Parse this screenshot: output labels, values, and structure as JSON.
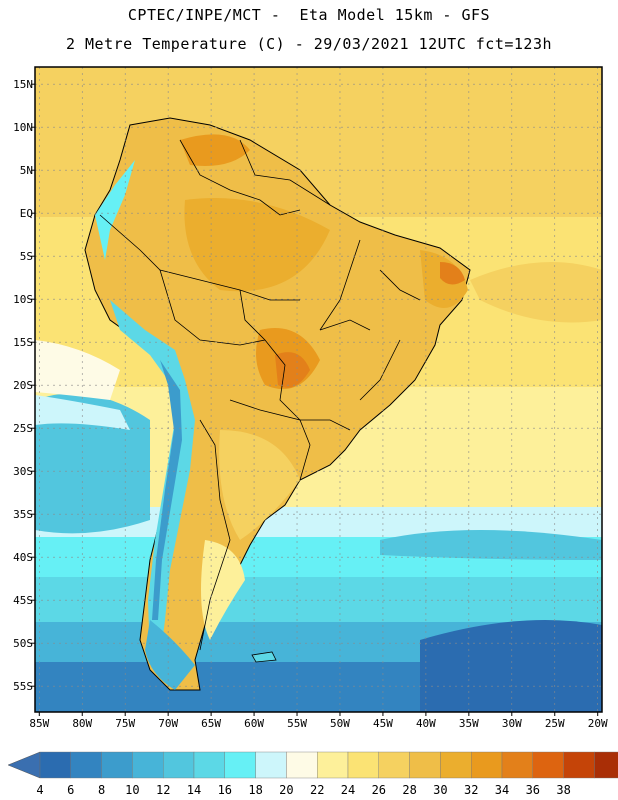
{
  "header": {
    "line1": "CPTEC/INPE/MCT -  Eta Model 15km - GFS",
    "line2": "2 Metre Temperature (C) - 29/03/2021 12UTC fct=123h"
  },
  "map": {
    "lat_labels": [
      "15N",
      "10N",
      "5N",
      "EQ",
      "5S",
      "10S",
      "15S",
      "20S",
      "25S",
      "30S",
      "35S",
      "40S",
      "45S",
      "50S",
      "55S"
    ],
    "lon_labels": [
      "85W",
      "80W",
      "75W",
      "70W",
      "65W",
      "60W",
      "55W",
      "50W",
      "45W",
      "40W",
      "35W",
      "30W",
      "25W",
      "20W"
    ],
    "lat_values": [
      15,
      10,
      5,
      0,
      -5,
      -10,
      -15,
      -20,
      -25,
      -30,
      -35,
      -40,
      -45,
      -50,
      -55
    ],
    "lon_values": [
      -85,
      -80,
      -75,
      -70,
      -65,
      -60,
      -55,
      -50,
      -45,
      -40,
      -35,
      -30,
      -25,
      -20
    ],
    "extent": {
      "lon_min": -85.5,
      "lon_max": -19.5,
      "lat_min": -58,
      "lat_max": 17
    }
  },
  "colorbar": {
    "labels": [
      "4",
      "6",
      "8",
      "10",
      "12",
      "14",
      "16",
      "18",
      "20",
      "22",
      "24",
      "26",
      "28",
      "30",
      "32",
      "34",
      "36",
      "38"
    ],
    "colors": [
      "#2b6cb0",
      "#3384c0",
      "#3c9ccc",
      "#47b4d8",
      "#52c6de",
      "#5cd8e6",
      "#66f0f5",
      "#cdf6fb",
      "#fefbe6",
      "#fdf09a",
      "#fbe374",
      "#f5d160",
      "#efbe48",
      "#ebae2e",
      "#e99a1e",
      "#e3801a",
      "#dd6410",
      "#c54408",
      "#a92e06"
    ],
    "low_color": "#3a6fb0",
    "high_color": "#b83a0c"
  }
}
